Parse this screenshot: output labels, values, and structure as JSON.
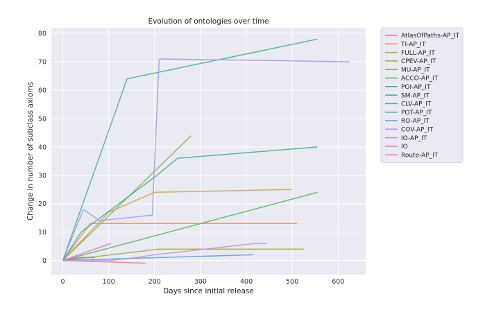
{
  "chart_data": {
    "type": "line",
    "title": "Evolution of ontologies over time",
    "xlabel": "Days since initial release",
    "ylabel": "Change in number of subclass axioms",
    "xlim": [
      -25,
      660
    ],
    "ylim": [
      -5,
      82
    ],
    "xticks": [
      0,
      100,
      200,
      300,
      400,
      500,
      600
    ],
    "yticks": [
      0,
      10,
      20,
      30,
      40,
      50,
      60,
      70,
      80
    ],
    "grid": true,
    "legend_position": "outside-right",
    "series": [
      {
        "name": "AtlasOfPaths-AP_IT",
        "color": "#e8807a",
        "x": [
          0,
          180
        ],
        "y": [
          0,
          -1
        ]
      },
      {
        "name": "TI-AP_IT",
        "color": "#ee8d55",
        "x": [
          0,
          60,
          510
        ],
        "y": [
          0,
          13,
          13
        ]
      },
      {
        "name": "FULL-AP_IT",
        "color": "#c9a452",
        "x": [
          0,
          100,
          200,
          500
        ],
        "y": [
          0,
          17,
          24,
          25
        ]
      },
      {
        "name": "CPEV-AP_IT",
        "color": "#a8a845",
        "x": [
          0,
          210,
          525
        ],
        "y": [
          0,
          4,
          4
        ]
      },
      {
        "name": "MU-AP_IT",
        "color": "#8db14c",
        "x": [
          0,
          280
        ],
        "y": [
          0,
          44
        ]
      },
      {
        "name": "ACCO-AP_IT",
        "color": "#55b45a",
        "x": [
          0,
          555
        ],
        "y": [
          0,
          24
        ]
      },
      {
        "name": "POI-AP_IT",
        "color": "#3eae86",
        "x": [
          0,
          40,
          205,
          250,
          555
        ],
        "y": [
          0,
          10,
          30,
          36,
          40
        ]
      },
      {
        "name": "SM-AP_IT",
        "color": "#41ae9e",
        "x": [
          0,
          140,
          555
        ],
        "y": [
          0,
          64,
          78
        ]
      },
      {
        "name": "CLV-AP_IT",
        "color": "#45aab2",
        "x": [
          0,
          10
        ],
        "y": [
          0,
          0
        ]
      },
      {
        "name": "POT-AP_IT",
        "color": "#46a5c3",
        "x": [
          0,
          40,
          70
        ],
        "y": [
          0,
          1,
          1
        ]
      },
      {
        "name": "RO-AP_IT",
        "color": "#5c9fd8",
        "x": [
          0,
          415
        ],
        "y": [
          0,
          2
        ]
      },
      {
        "name": "COV-AP_IT",
        "color": "#9e9be6",
        "x": [
          0,
          45,
          80,
          195,
          210,
          625
        ],
        "y": [
          0,
          18,
          14,
          16,
          71,
          70
        ]
      },
      {
        "name": "IO-AP_IT",
        "color": "#c78ce3",
        "x": [
          0,
          105,
          160,
          200,
          420,
          445
        ],
        "y": [
          0,
          0,
          1,
          2,
          6,
          6
        ]
      },
      {
        "name": "IO",
        "color": "#e077c9",
        "x": [
          0,
          105
        ],
        "y": [
          0,
          6
        ]
      },
      {
        "name": "Route-AP_IT",
        "color": "#e97aa8",
        "x": [
          0,
          30
        ],
        "y": [
          0,
          1
        ]
      }
    ]
  }
}
